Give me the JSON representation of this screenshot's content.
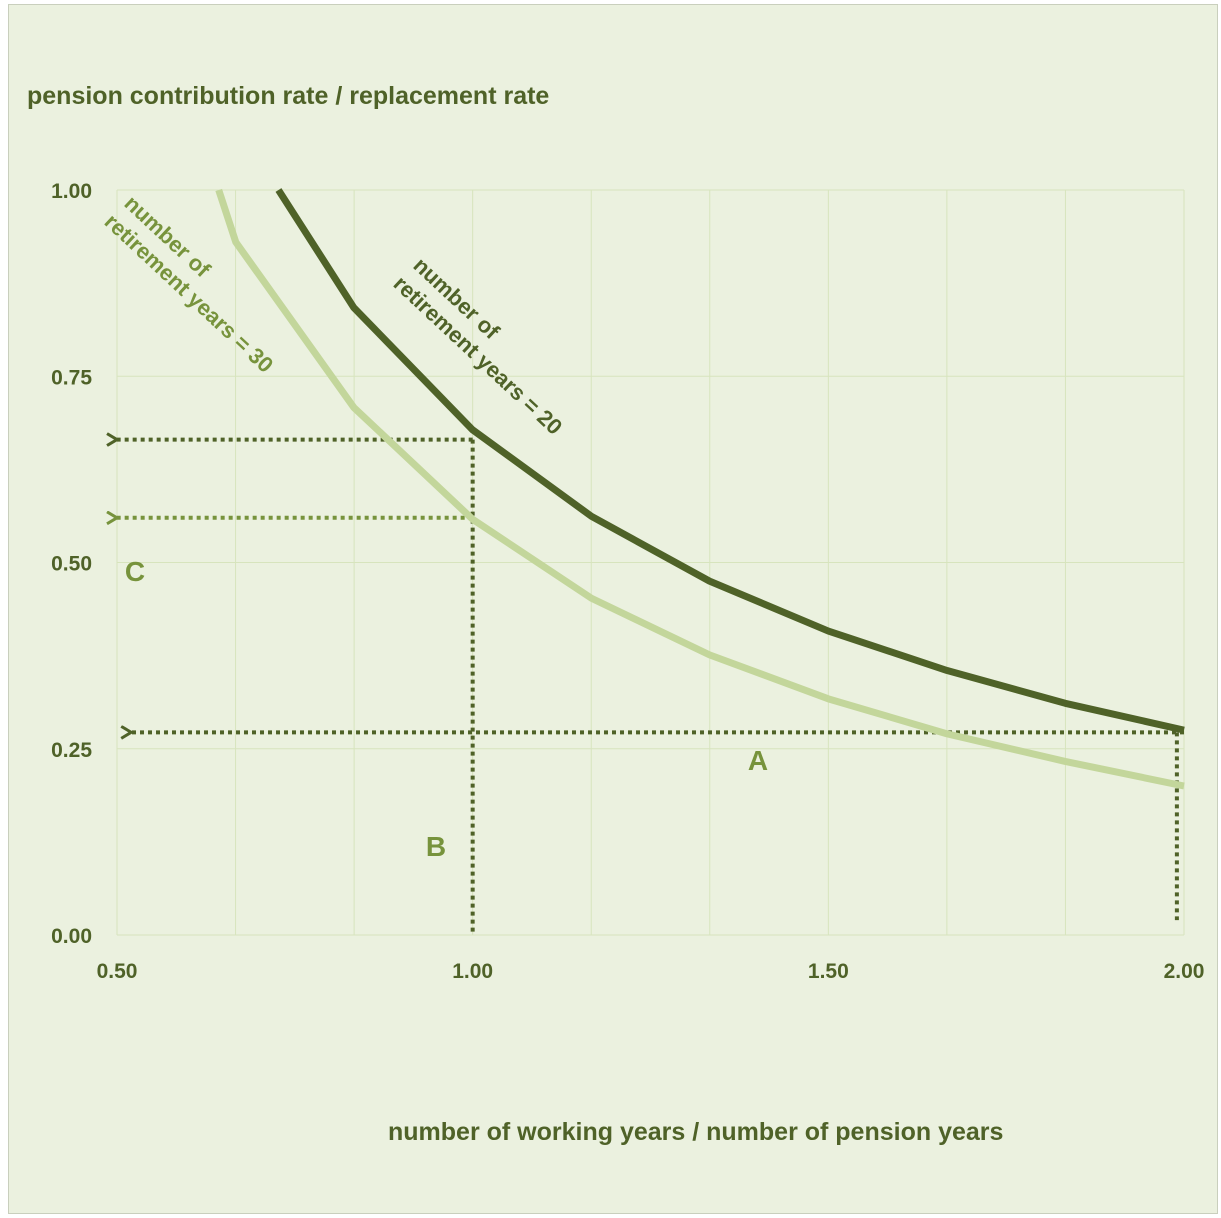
{
  "chart_data": {
    "type": "line",
    "title": "",
    "xlabel": "number of working years / number of pension years",
    "ylabel": "pension contribution rate / replacement rate",
    "xlim": [
      0.5,
      2.0
    ],
    "ylim": [
      0.0,
      1.0
    ],
    "x_ticks": [
      "0.50",
      "1.00",
      "1.50",
      "2.00"
    ],
    "y_ticks": [
      "0.00",
      "0.25",
      "0.50",
      "0.75",
      "1.00"
    ],
    "grid": true,
    "legend": "none",
    "colors": {
      "dark": "#4f6228",
      "light": "#c3d69b",
      "mid": "#77933c",
      "grid": "#d7e4bd"
    },
    "series": [
      {
        "name": "number of retirement years = 20",
        "x": [
          0.727,
          0.833,
          1.0,
          1.167,
          1.333,
          1.5,
          1.667,
          1.833,
          2.0
        ],
        "y": [
          1.0,
          0.842,
          0.678,
          0.562,
          0.475,
          0.408,
          0.355,
          0.311,
          0.275
        ]
      },
      {
        "name": "number of retirement years = 30",
        "x": [
          0.643,
          0.667,
          0.833,
          1.0,
          1.167,
          1.333,
          1.5,
          1.667,
          1.833,
          2.0
        ],
        "y": [
          1.0,
          0.93,
          0.708,
          0.558,
          0.452,
          0.376,
          0.317,
          0.27,
          0.233,
          0.2
        ]
      }
    ],
    "annotations": [
      {
        "label": "A",
        "x": 1.41,
        "y": 0.235
      },
      {
        "label": "B",
        "x": 0.93,
        "y": 0.115
      },
      {
        "label": "C",
        "x": 0.525,
        "y": 0.49
      }
    ],
    "guide_lines": [
      {
        "type": "arrow",
        "from": [
          1.0,
          0.665
        ],
        "to": [
          0.5,
          0.665
        ]
      },
      {
        "type": "arrow",
        "from": [
          1.0,
          0.56
        ],
        "to": [
          0.5,
          0.56
        ]
      },
      {
        "type": "arrow",
        "from": [
          2.0,
          0.272
        ],
        "to": [
          0.52,
          0.272
        ]
      },
      {
        "type": "line",
        "from": [
          1.0,
          0.665
        ],
        "to": [
          1.0,
          0.0
        ]
      },
      {
        "type": "line",
        "from": [
          1.99,
          0.272
        ],
        "to": [
          1.99,
          0.02
        ]
      }
    ]
  }
}
